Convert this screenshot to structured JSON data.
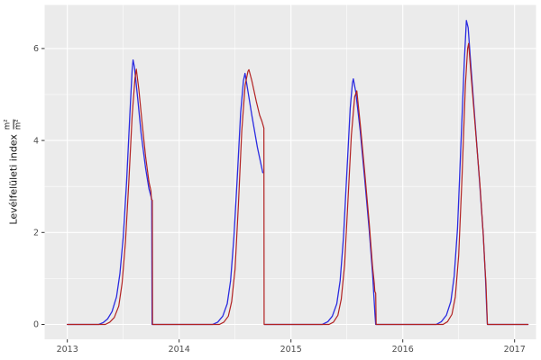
{
  "chart_data": {
    "type": "line",
    "title": "",
    "xlabel": "",
    "ylabel_text": "Levélfelületi index",
    "ylabel_unit_num": "m²",
    "ylabel_unit_den": "m²",
    "legend": "none",
    "grid": true,
    "colors": {
      "panel_background": "#EBEBEB",
      "grid": "#FFFFFF",
      "tick": "#333333",
      "tick_label": "#4D4D4D"
    },
    "x_range": [
      2012.797,
      2017.192
    ],
    "y_range": [
      -0.323,
      6.947
    ],
    "x_axis": {
      "ticks": [
        2013,
        2014,
        2015,
        2016,
        2017
      ],
      "tick_labels": [
        "2013",
        "2014",
        "2015",
        "2016",
        "2017"
      ],
      "minor": [
        2013.5,
        2014.5,
        2015.5,
        2016.5
      ]
    },
    "y_axis": {
      "ticks": [
        0,
        2,
        4,
        6
      ],
      "tick_labels": [
        "0",
        "2",
        "4",
        "6"
      ],
      "minor": [
        1,
        3,
        5
      ]
    },
    "series": [
      {
        "name": "series-blue",
        "color": "#2B2BE0",
        "width": 1.3,
        "segments": [
          [
            [
              2013.0,
              0
            ],
            [
              2013.28,
              0
            ],
            [
              2013.32,
              0.04
            ],
            [
              2013.36,
              0.12
            ],
            [
              2013.4,
              0.28
            ],
            [
              2013.44,
              0.6
            ],
            [
              2013.47,
              1.1
            ],
            [
              2013.5,
              1.9
            ],
            [
              2013.53,
              3.1
            ],
            [
              2013.56,
              4.6
            ],
            [
              2013.58,
              5.55
            ],
            [
              2013.588,
              5.75
            ],
            [
              2013.6,
              5.6
            ],
            [
              2013.63,
              4.9
            ],
            [
              2013.66,
              4.15
            ],
            [
              2013.7,
              3.4
            ],
            [
              2013.73,
              2.95
            ],
            [
              2013.755,
              2.72
            ],
            [
              2013.758,
              0
            ],
            [
              2013.8,
              0
            ],
            [
              2014.3,
              0
            ],
            [
              2014.345,
              0.05
            ],
            [
              2014.39,
              0.18
            ],
            [
              2014.43,
              0.45
            ],
            [
              2014.46,
              0.95
            ],
            [
              2014.49,
              1.9
            ],
            [
              2014.52,
              3.2
            ],
            [
              2014.55,
              4.6
            ],
            [
              2014.575,
              5.3
            ],
            [
              2014.589,
              5.46
            ],
            [
              2014.61,
              5.15
            ],
            [
              2014.65,
              4.55
            ],
            [
              2014.7,
              3.85
            ],
            [
              2014.748,
              3.3
            ]
          ],
          [
            [
              2014.762,
              0
            ],
            [
              2015.28,
              0
            ],
            [
              2015.33,
              0.06
            ],
            [
              2015.37,
              0.18
            ],
            [
              2015.41,
              0.45
            ],
            [
              2015.44,
              0.95
            ],
            [
              2015.47,
              1.9
            ],
            [
              2015.5,
              3.3
            ],
            [
              2015.53,
              4.7
            ],
            [
              2015.55,
              5.25
            ],
            [
              2015.558,
              5.34
            ],
            [
              2015.58,
              5.05
            ],
            [
              2015.62,
              4.2
            ],
            [
              2015.66,
              3.15
            ],
            [
              2015.7,
              2.05
            ],
            [
              2015.73,
              1.1
            ],
            [
              2015.752,
              0.2
            ],
            [
              2015.758,
              0
            ],
            [
              2016.3,
              0
            ],
            [
              2016.345,
              0.06
            ],
            [
              2016.39,
              0.2
            ],
            [
              2016.43,
              0.5
            ],
            [
              2016.46,
              1.05
            ],
            [
              2016.49,
              2.1
            ],
            [
              2016.52,
              3.9
            ],
            [
              2016.55,
              5.7
            ],
            [
              2016.569,
              6.61
            ],
            [
              2016.585,
              6.45
            ],
            [
              2016.61,
              5.6
            ],
            [
              2016.65,
              4.3
            ],
            [
              2016.69,
              3.0
            ],
            [
              2016.72,
              1.95
            ],
            [
              2016.74,
              1.0
            ],
            [
              2016.752,
              0.25
            ],
            [
              2016.757,
              0
            ],
            [
              2017.12,
              0
            ]
          ]
        ]
      },
      {
        "name": "series-red",
        "color": "#B22222",
        "width": 1.2,
        "segments": [
          [
            [
              2013.0,
              0
            ],
            [
              2013.34,
              0
            ],
            [
              2013.38,
              0.05
            ],
            [
              2013.42,
              0.15
            ],
            [
              2013.46,
              0.4
            ],
            [
              2013.49,
              0.9
            ],
            [
              2013.52,
              1.8
            ],
            [
              2013.55,
              3.1
            ],
            [
              2013.58,
              4.55
            ],
            [
              2013.605,
              5.35
            ],
            [
              2013.617,
              5.55
            ],
            [
              2013.64,
              5.1
            ],
            [
              2013.67,
              4.35
            ],
            [
              2013.7,
              3.65
            ],
            [
              2013.73,
              3.1
            ],
            [
              2013.748,
              2.9
            ],
            [
              2013.752,
              2.72
            ],
            [
              2013.76,
              2.7
            ],
            [
              2013.762,
              0
            ],
            [
              2014.36,
              0
            ],
            [
              2014.4,
              0.05
            ],
            [
              2014.44,
              0.18
            ],
            [
              2014.47,
              0.5
            ],
            [
              2014.5,
              1.2
            ],
            [
              2014.53,
              2.6
            ],
            [
              2014.56,
              4.2
            ],
            [
              2014.59,
              5.2
            ],
            [
              2014.615,
              5.5
            ],
            [
              2014.624,
              5.54
            ],
            [
              2014.65,
              5.3
            ],
            [
              2014.69,
              4.85
            ],
            [
              2014.72,
              4.55
            ],
            [
              2014.74,
              4.42
            ],
            [
              2014.758,
              4.27
            ],
            [
              2014.76,
              0
            ],
            [
              2015.34,
              0
            ],
            [
              2015.38,
              0.05
            ],
            [
              2015.42,
              0.2
            ],
            [
              2015.45,
              0.55
            ],
            [
              2015.48,
              1.3
            ],
            [
              2015.51,
              2.7
            ],
            [
              2015.54,
              4.1
            ],
            [
              2015.57,
              4.95
            ],
            [
              2015.589,
              5.08
            ],
            [
              2015.62,
              4.35
            ],
            [
              2015.66,
              3.3
            ],
            [
              2015.7,
              2.2
            ],
            [
              2015.73,
              1.25
            ],
            [
              2015.745,
              0.9
            ],
            [
              2015.75,
              0.72
            ],
            [
              2015.758,
              0.68
            ],
            [
              2015.762,
              0
            ],
            [
              2016.36,
              0
            ],
            [
              2016.4,
              0.06
            ],
            [
              2016.44,
              0.22
            ],
            [
              2016.47,
              0.6
            ],
            [
              2016.5,
              1.5
            ],
            [
              2016.53,
              3.2
            ],
            [
              2016.56,
              5.2
            ],
            [
              2016.58,
              6.0
            ],
            [
              2016.589,
              6.11
            ],
            [
              2016.61,
              5.45
            ],
            [
              2016.65,
              4.25
            ],
            [
              2016.69,
              3.05
            ],
            [
              2016.72,
              1.95
            ],
            [
              2016.735,
              1.25
            ],
            [
              2016.74,
              1.05
            ],
            [
              2016.744,
              0.9
            ],
            [
              2016.752,
              0.35
            ],
            [
              2016.757,
              0
            ],
            [
              2017.12,
              0
            ]
          ]
        ]
      }
    ]
  }
}
